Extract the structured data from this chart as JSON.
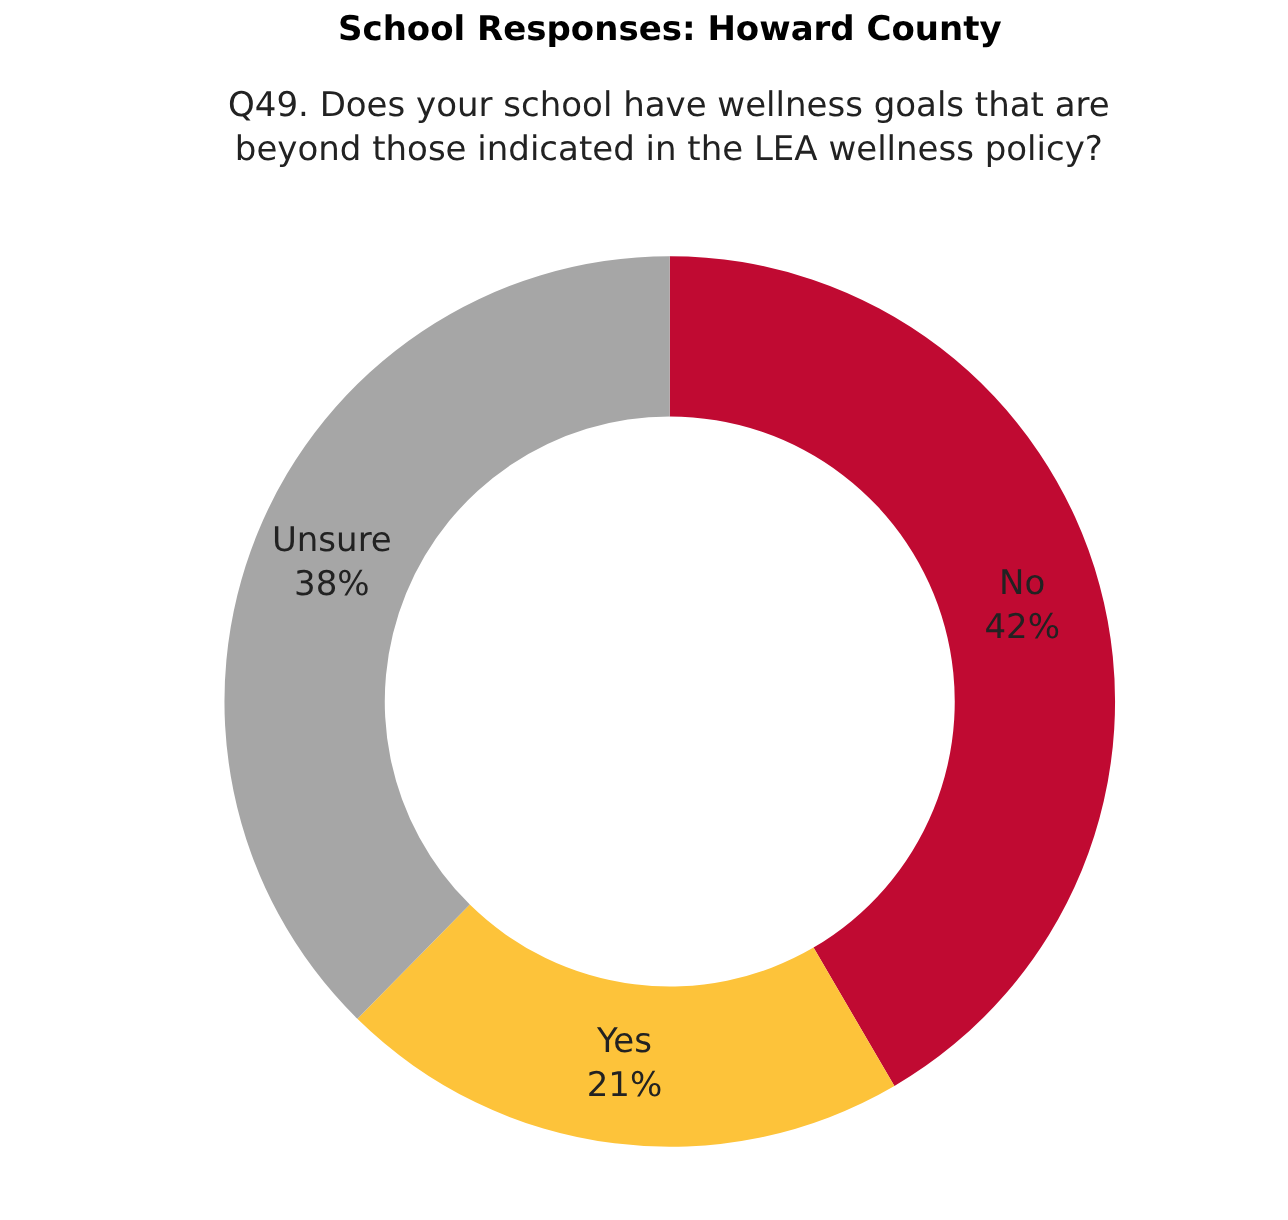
{
  "chart_data": {
    "type": "donut",
    "title": "School Responses: Howard County",
    "subtitle": "Q49. Does your school have wellness goals that are beyond those indicated in the LEA wellness policy?",
    "categories": [
      "No",
      "Yes",
      "Unsure"
    ],
    "values": [
      42,
      21,
      38
    ],
    "value_labels": [
      "42%",
      "21%",
      "38%"
    ],
    "colors": [
      "#c00a32",
      "#fdc33a",
      "#a6a6a6"
    ],
    "legend": false
  }
}
